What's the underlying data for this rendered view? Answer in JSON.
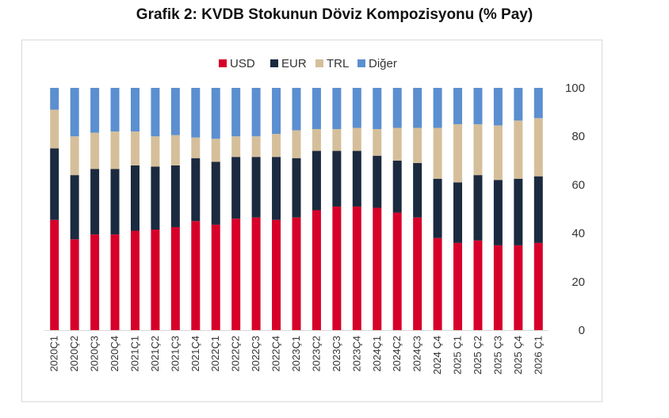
{
  "title": "Grafik 2: KVDB Stokunun Döviz Kompozisyonu (% Pay)",
  "chart_data": {
    "type": "bar",
    "stacked": true,
    "ylim": [
      0,
      100
    ],
    "yticks": [
      0,
      20,
      40,
      60,
      80,
      100
    ],
    "y_axis_side": "right",
    "legend_position": "top",
    "grid": false,
    "categories": [
      "2020Ç1",
      "2020Ç2",
      "2020Ç3",
      "2020Ç4",
      "2021Ç1",
      "2021Ç2",
      "2021Ç3",
      "2021Ç4",
      "2022Ç1",
      "2022Ç2",
      "2022Ç3",
      "2022Ç4",
      "2023Ç1",
      "2023Ç2",
      "2023Ç3",
      "2023Ç4",
      "2024Ç1",
      "2024Ç2",
      "2024Ç3",
      "2024 Ç4",
      "2025 Ç1",
      "2025 Ç2",
      "2025 Ç3",
      "2025 Ç4",
      "2026 Ç1"
    ],
    "series": [
      {
        "name": "USD",
        "color": "#d6002a",
        "values": [
          45.5,
          37.5,
          39.5,
          39.5,
          41,
          41.5,
          42.5,
          45,
          43.5,
          46,
          46.5,
          45.5,
          46.5,
          49.5,
          51,
          51,
          50.5,
          48.5,
          46.5,
          38,
          36,
          37,
          35,
          35,
          36
        ]
      },
      {
        "name": "EUR",
        "color": "#1b2a3f",
        "values": [
          29.5,
          26.5,
          27,
          27,
          27,
          26,
          25.5,
          26,
          26,
          25.5,
          25,
          26,
          24.5,
          24.5,
          23,
          23,
          21.5,
          21.5,
          22.5,
          24.5,
          25,
          27,
          27,
          27.5,
          27.5
        ]
      },
      {
        "name": "TRL",
        "color": "#d5bf9b",
        "values": [
          16,
          16,
          15,
          15.5,
          14,
          12.5,
          12.5,
          8.5,
          9.5,
          8.5,
          8.5,
          9.5,
          11.5,
          9,
          9,
          9.5,
          11,
          13.5,
          14.5,
          21,
          24,
          21,
          22.5,
          24,
          24
        ]
      },
      {
        "name": "Diğer",
        "color": "#5b8fd0",
        "values": [
          9,
          20,
          18.5,
          18,
          18,
          20,
          19.5,
          20.5,
          21,
          20,
          20,
          19,
          17.5,
          17,
          17,
          16.5,
          17,
          16.5,
          16.5,
          16.5,
          15,
          15,
          15.5,
          13.5,
          12.5
        ]
      }
    ]
  }
}
